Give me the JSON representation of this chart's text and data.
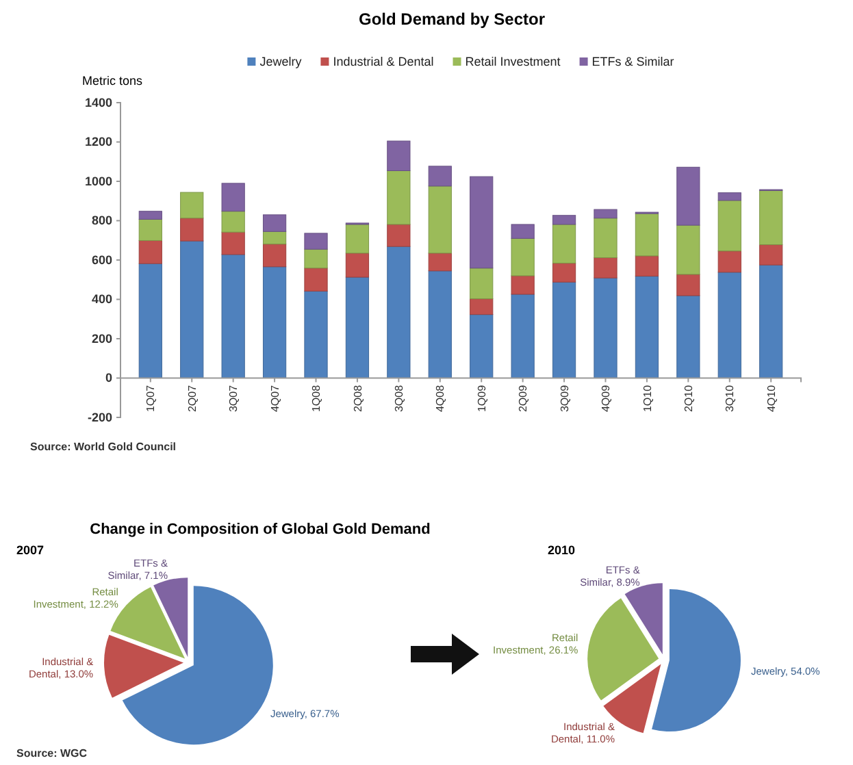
{
  "chart_data": [
    {
      "type": "bar",
      "title": "Gold Demand by Sector",
      "ylabel": "Metric tons",
      "stacked": true,
      "legend": "top",
      "ylim": [
        -200,
        1400
      ],
      "yticks": [
        -200,
        0,
        200,
        400,
        600,
        800,
        1000,
        1200,
        1400
      ],
      "annotations": [
        "Source: World Gold Council"
      ],
      "categories": [
        "1Q07",
        "2Q07",
        "3Q07",
        "4Q07",
        "1Q08",
        "2Q08",
        "3Q08",
        "4Q08",
        "1Q09",
        "2Q09",
        "3Q09",
        "4Q09",
        "1Q10",
        "2Q10",
        "3Q10",
        "4Q10"
      ],
      "series": [
        {
          "name": "Jewelry",
          "color": "#4f81bd",
          "values": [
            582,
            697,
            628,
            566,
            442,
            513,
            669,
            545,
            323,
            426,
            488,
            509,
            518,
            419,
            538,
            575
          ]
        },
        {
          "name": "Industrial & Dental",
          "color": "#c0504d",
          "values": [
            117,
            116,
            114,
            115,
            117,
            122,
            112,
            90,
            80,
            94,
            96,
            103,
            103,
            108,
            108,
            103
          ]
        },
        {
          "name": "Retail Investment",
          "color": "#9bbb59",
          "values": [
            108,
            131,
            106,
            64,
            96,
            146,
            273,
            341,
            156,
            190,
            197,
            201,
            215,
            250,
            257,
            275
          ]
        },
        {
          "name": "ETFs & Similar",
          "color": "#8064a2",
          "values": [
            41,
            0,
            142,
            85,
            81,
            7,
            151,
            101,
            465,
            71,
            46,
            44,
            7,
            295,
            39,
            5
          ]
        }
      ]
    },
    {
      "type": "pie",
      "title": "Change in Composition of Global Gold Demand",
      "subtitle": "2007",
      "annotations": [
        "Source: WGC"
      ],
      "categories": [
        "Jewelry",
        "Industrial & Dental",
        "Retail Investment",
        "ETFs & Similar"
      ],
      "values": [
        67.7,
        13.0,
        12.2,
        7.1
      ],
      "value_labels": [
        "67.7%",
        "13.0%",
        "12.2%",
        "7.1%"
      ],
      "colors": [
        "#4f81bd",
        "#c0504d",
        "#9bbb59",
        "#8064a2"
      ]
    },
    {
      "type": "pie",
      "title": "2010",
      "categories": [
        "Jewelry",
        "Industrial & Dental",
        "Retail Investment",
        "ETFs & Similar"
      ],
      "values": [
        54.0,
        11.0,
        26.1,
        8.9
      ],
      "value_labels": [
        "54.0%",
        "11.0%",
        "26.1%",
        "8.9%"
      ],
      "colors": [
        "#4f81bd",
        "#c0504d",
        "#9bbb59",
        "#8064a2"
      ]
    }
  ]
}
